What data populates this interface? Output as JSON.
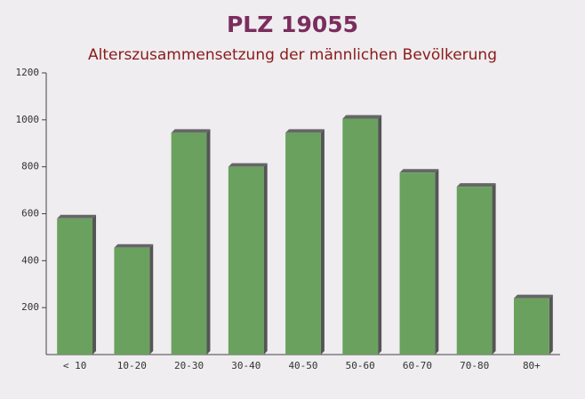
{
  "chart_data": {
    "type": "bar",
    "title": "PLZ 19055",
    "subtitle": "Alterszusammensetzung der männlichen Bevölkerung",
    "categories": [
      "< 10",
      "10-20",
      "20-30",
      "30-40",
      "40-50",
      "50-60",
      "60-70",
      "70-80",
      "80+"
    ],
    "values": [
      580,
      455,
      945,
      800,
      945,
      1005,
      775,
      715,
      240
    ],
    "color": "#6aa15f",
    "ylim": [
      0,
      1200
    ],
    "yticks": [
      200,
      400,
      600,
      800,
      1000,
      1200
    ],
    "grid": false
  }
}
